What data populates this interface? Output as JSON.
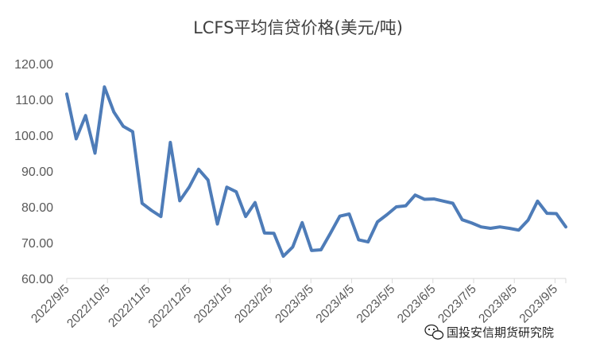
{
  "chart_data": {
    "type": "line",
    "title": "LCFS平均信贷价格(美元/吨)",
    "xlabel": "",
    "ylabel": "",
    "ylim": [
      60,
      120
    ],
    "y_ticks": [
      "60.00",
      "70.00",
      "80.00",
      "90.00",
      "100.00",
      "110.00",
      "120.00"
    ],
    "x_tick_labels": [
      "2022/9/5",
      "2022/10/5",
      "2022/11/5",
      "2022/12/5",
      "2023/1/5",
      "2023/2/5",
      "2023/3/5",
      "2023/4/5",
      "2023/5/5",
      "2023/6/5",
      "2023/7/5",
      "2023/8/5",
      "2023/9/5"
    ],
    "grid": false,
    "legend": "none",
    "color": "#4E7CB8",
    "series": [
      {
        "values": [
          111.5,
          99.0,
          105.5,
          95.0,
          113.5,
          106.5,
          102.5,
          101.0,
          81.0,
          79.0,
          77.3,
          98.0,
          81.7,
          85.5,
          90.5,
          87.5,
          75.2,
          85.5,
          84.2,
          77.3,
          81.2,
          72.7,
          72.6,
          66.2,
          68.8,
          75.6,
          67.8,
          68.0,
          72.6,
          77.4,
          78.0,
          70.8,
          70.2,
          75.8,
          77.8,
          80.0,
          80.3,
          83.3,
          82.1,
          82.2,
          81.6,
          81.0,
          76.4,
          75.5,
          74.4,
          74.0,
          74.4,
          74.0,
          73.5,
          76.3,
          81.6,
          78.2,
          78.1,
          74.4
        ]
      }
    ]
  },
  "watermark": {
    "text": "国投安信期货研究院",
    "icon": "wechat-icon"
  }
}
